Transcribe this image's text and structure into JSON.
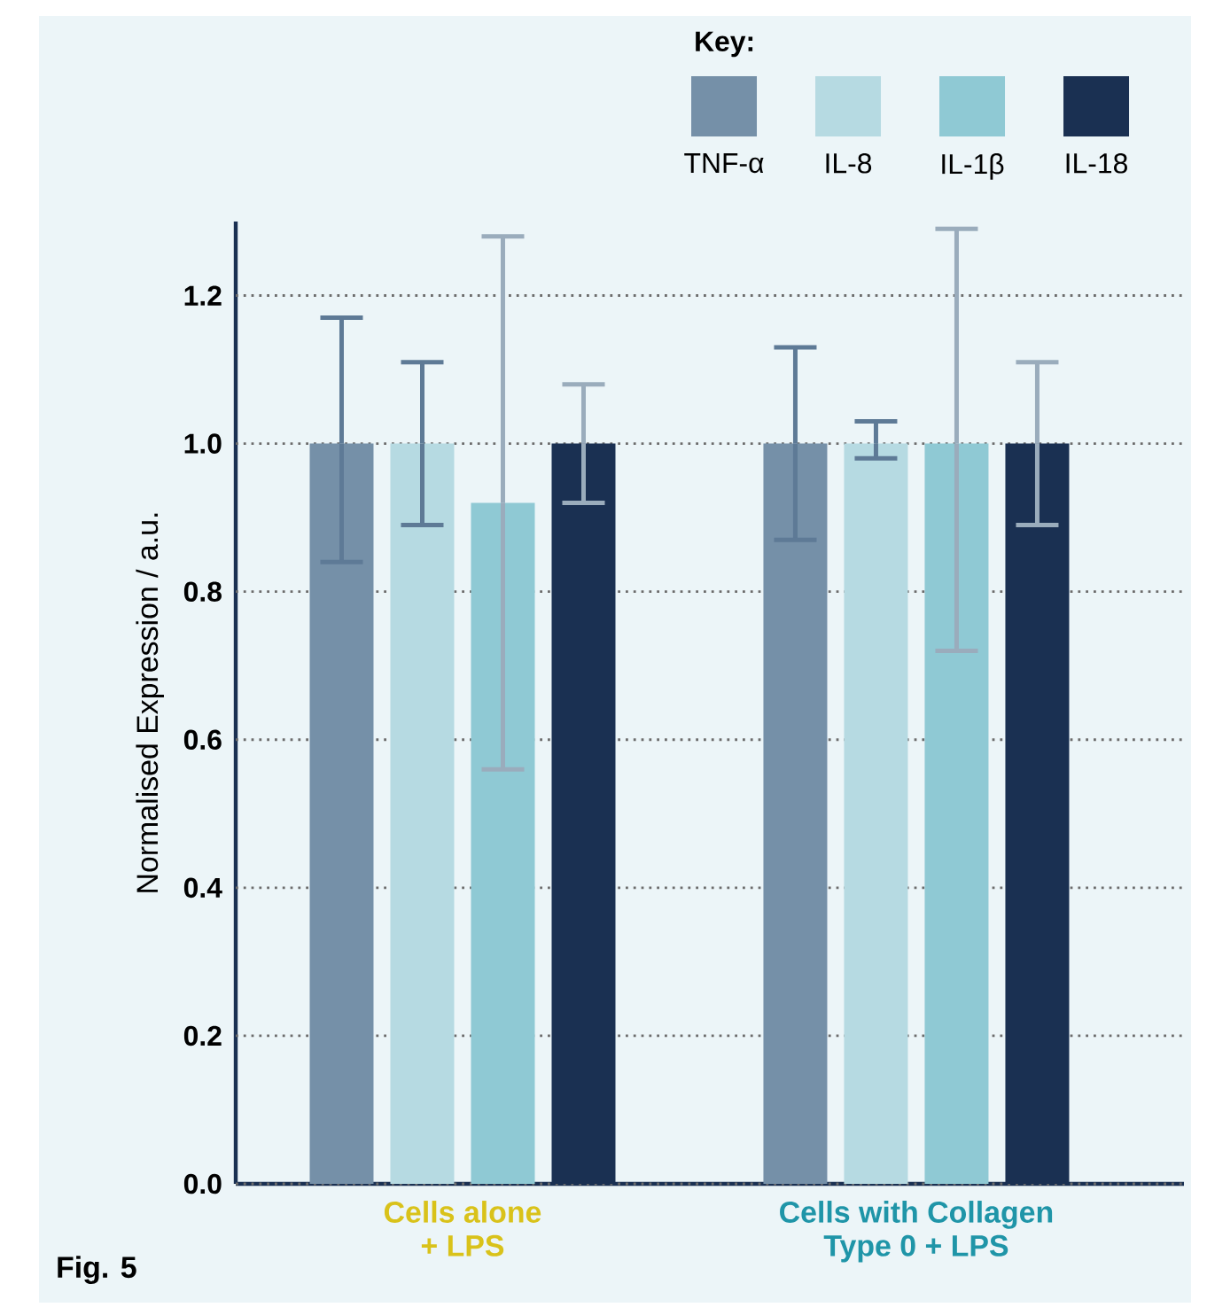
{
  "chart_data": {
    "type": "bar",
    "categories": [
      "Cells alone + LPS",
      "Cells with Collagen Type 0 + LPS"
    ],
    "ylabel": "Normalised Expression / a.u.",
    "legend_title": "Key:",
    "annotations": [
      "Fig. 5"
    ],
    "series": [
      {
        "name": "TNF-α",
        "color": "#7590a8",
        "values": [
          1.0,
          1.0
        ],
        "errors": [
          [
            0.84,
            1.17
          ],
          [
            0.87,
            1.13
          ]
        ]
      },
      {
        "name": "IL-8",
        "color": "#b6dae2",
        "values": [
          1.0,
          1.0
        ],
        "errors": [
          [
            0.89,
            1.11
          ],
          [
            0.98,
            1.03
          ]
        ]
      },
      {
        "name": "IL-1β",
        "color": "#8fc9d4",
        "values": [
          0.92,
          1.0
        ],
        "errors": [
          [
            0.56,
            1.28
          ],
          [
            0.72,
            1.29
          ]
        ]
      },
      {
        "name": "IL-18",
        "color": "#1a3052",
        "values": [
          1.0,
          1.0
        ],
        "errors": [
          [
            0.92,
            1.08
          ],
          [
            0.89,
            1.11
          ]
        ]
      }
    ],
    "ylim": [
      0,
      1.3
    ],
    "yticks": [
      {
        "value": 0,
        "label": "0.0"
      },
      {
        "value": 0.2,
        "label": "0.2"
      },
      {
        "value": 0.4,
        "label": "0.4"
      },
      {
        "value": 0.6,
        "label": "0.6"
      },
      {
        "value": 0.8,
        "label": "0.8"
      },
      {
        "value": 1,
        "label": "1.0"
      },
      {
        "value": 1.2,
        "label": "1.2"
      }
    ],
    "grid": "y",
    "legend": "top right"
  }
}
